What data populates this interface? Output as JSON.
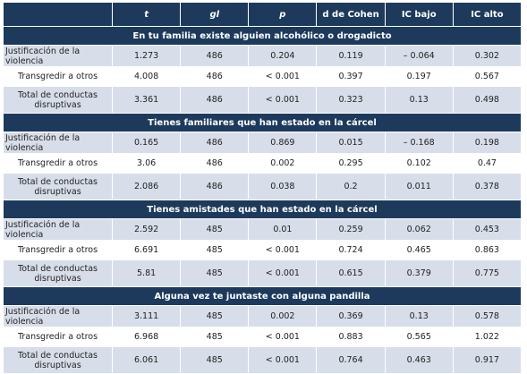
{
  "table": {
    "columns": [
      "t",
      "gl",
      "p",
      "d de Cohen",
      "IC bajo",
      "IC alto"
    ],
    "sections": [
      {
        "title": "En tu familia existe alguien alcohólico o drogadicto",
        "rows": [
          [
            "Justificación de la violencia",
            "1.273",
            "486",
            "0.204",
            "0.119",
            "– 0.064",
            "0.302"
          ],
          [
            "Transgredir a otros",
            "4.008",
            "486",
            "< 0.001",
            "0.397",
            "0.197",
            "0.567"
          ],
          [
            "Total de conductas disruptivas",
            "3.361",
            "486",
            "< 0.001",
            "0.323",
            "0.13",
            "0.498"
          ]
        ]
      },
      {
        "title": "Tienes familiares que han estado en la cárcel",
        "rows": [
          [
            "Justificación de la violencia",
            "0.165",
            "486",
            "0.869",
            "0.015",
            "– 0.168",
            "0.198"
          ],
          [
            "Transgredir a otros",
            "3.06",
            "486",
            "0.002",
            "0.295",
            "0.102",
            "0.47"
          ],
          [
            "Total de conductas disruptivas",
            "2.086",
            "486",
            "0.038",
            "0.2",
            "0.011",
            "0.378"
          ]
        ]
      },
      {
        "title": "Tienes amistades que han estado en la cárcel",
        "rows": [
          [
            "Justificación de la violencia",
            "2.592",
            "485",
            "0.01",
            "0.259",
            "0.062",
            "0.453"
          ],
          [
            "Transgredir a otros",
            "6.691",
            "485",
            "< 0.001",
            "0.724",
            "0.465",
            "0.863"
          ],
          [
            "Total de conductas disruptivas",
            "5.81",
            "485",
            "< 0.001",
            "0.615",
            "0.379",
            "0.775"
          ]
        ]
      },
      {
        "title": "Alguna vez te juntaste con alguna pandilla",
        "rows": [
          [
            "Justificación de la violencia",
            "3.111",
            "485",
            "0.002",
            "0.369",
            "0.13",
            "0.578"
          ],
          [
            "Transgredir a otros",
            "6.968",
            "485",
            "< 0.001",
            "0.883",
            "0.565",
            "1.022"
          ],
          [
            "Total de conductas disruptivas",
            "6.061",
            "485",
            "< 0.001",
            "0.764",
            "0.463",
            "0.917"
          ]
        ]
      }
    ]
  }
}
